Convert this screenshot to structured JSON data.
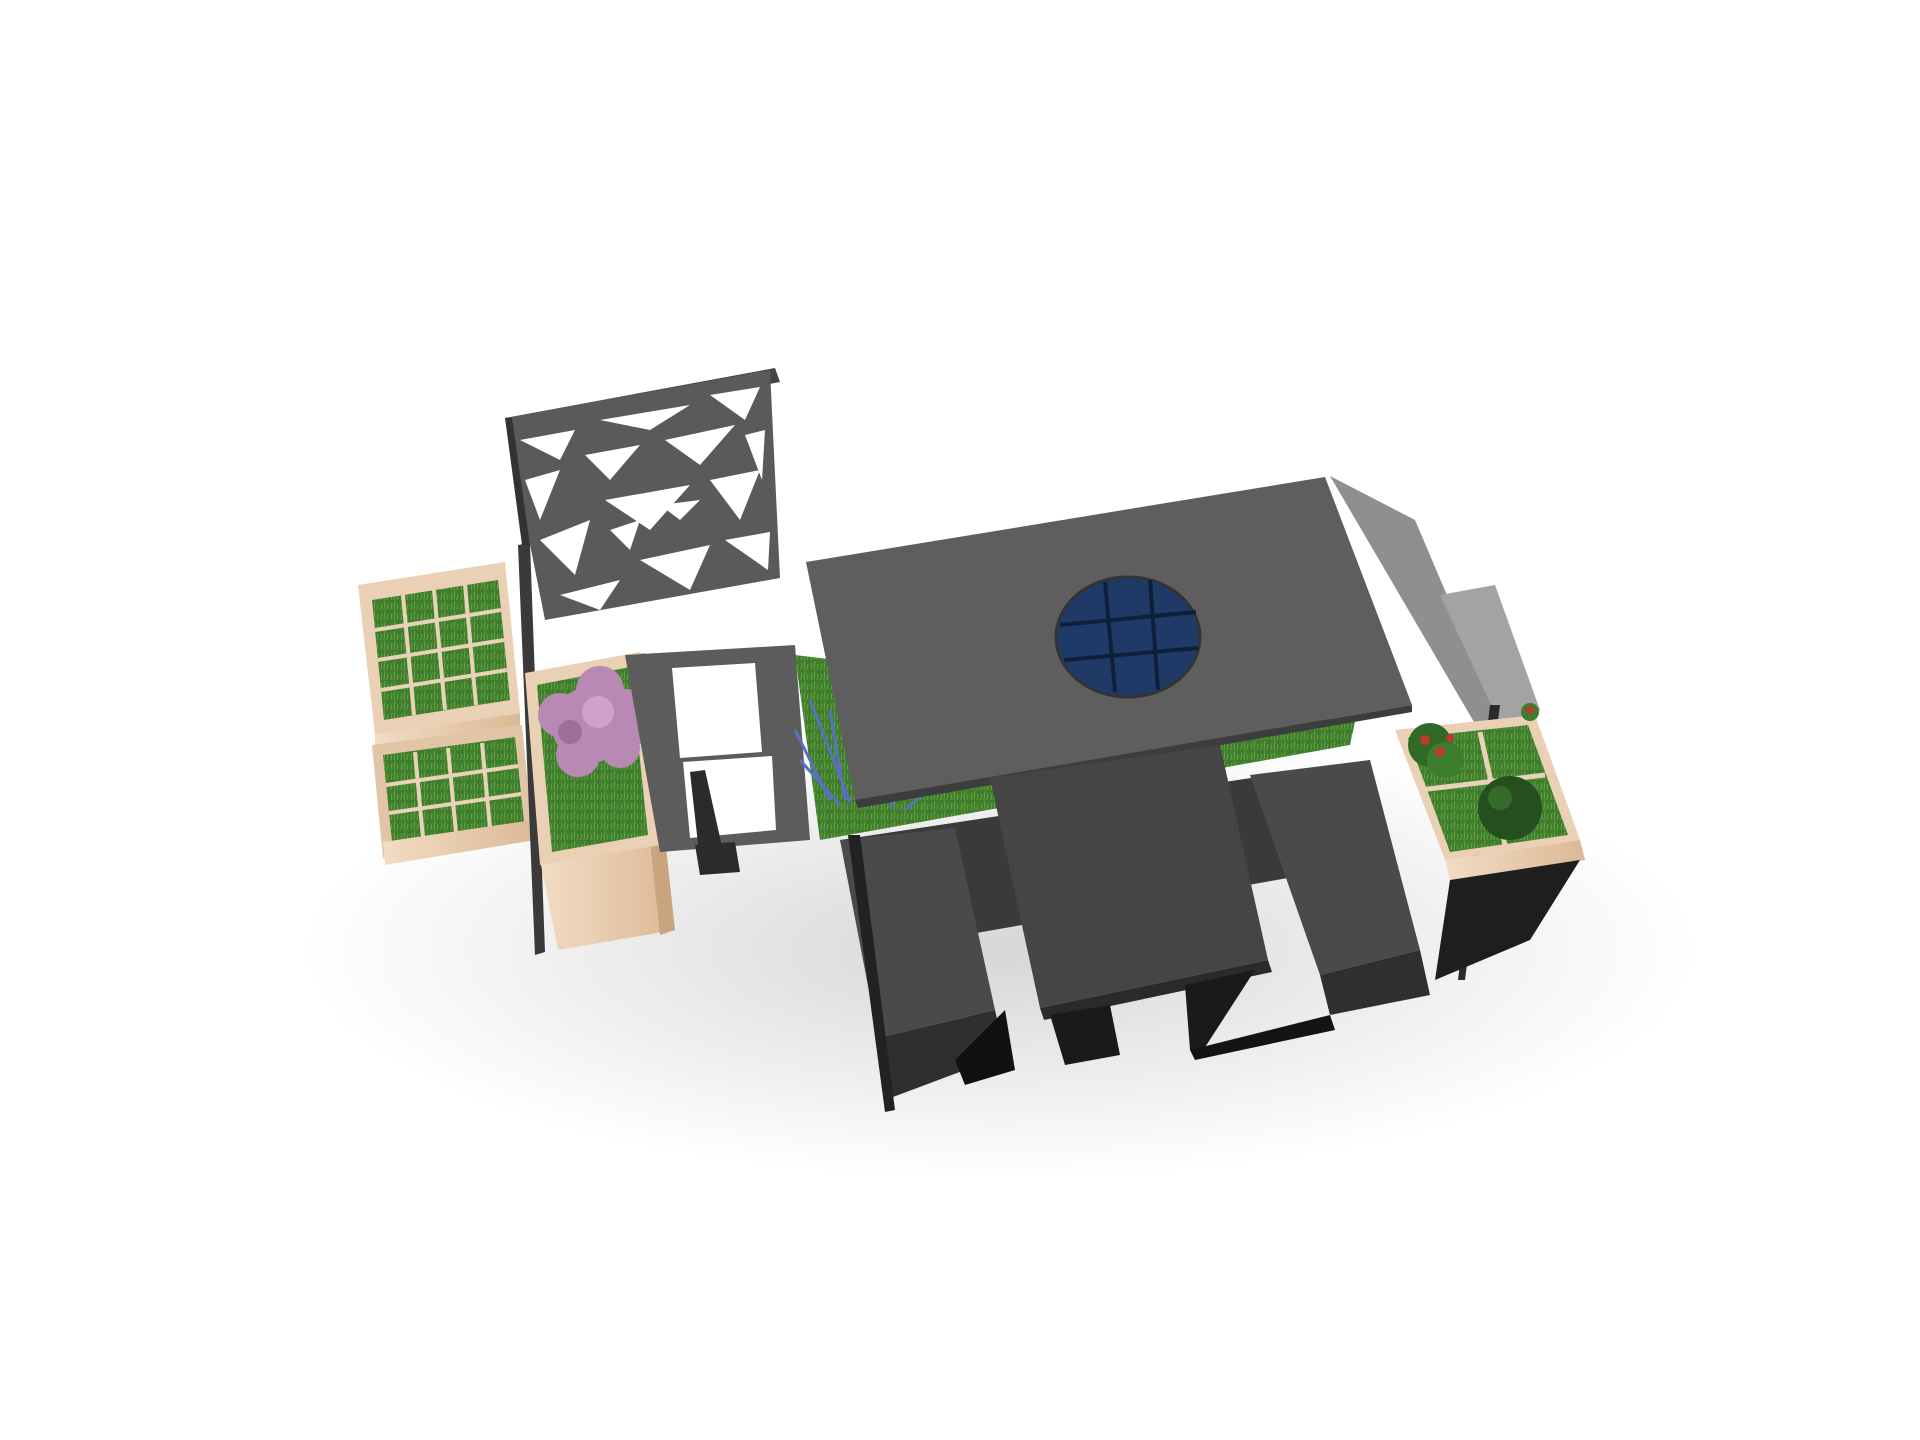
{
  "scene": {
    "subject": "street-furniture-module",
    "background": "#ffffff",
    "colors": {
      "metal_dark": "#2a2a2a",
      "metal_mid": "#5a5a5a",
      "metal_light": "#9a9a9a",
      "wood": "#ead0b4",
      "wood_shade": "#d9b999",
      "grass": "#3f7d2c",
      "grass_light": "#5f9e3f",
      "solar": "#233f6e",
      "blossom": "#b889b3",
      "rose": "#c0392b",
      "lavender": "#5a6fc4"
    }
  }
}
